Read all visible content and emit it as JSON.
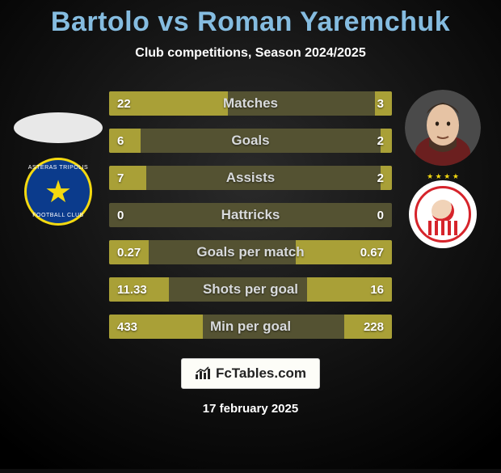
{
  "header": {
    "title": "Bartolo vs Roman Yaremchuk",
    "title_color": "#85bce0",
    "subtitle": "Club competitions, Season 2024/2025",
    "subtitle_color": "#ffffff"
  },
  "background": {
    "color": "#0e0e0e",
    "spotlight_top": "#2a2a2a",
    "spotlight_bottom": "#000000"
  },
  "players": {
    "left": {
      "name": "Bartolo",
      "avatar_shape": "ellipse",
      "avatar_fill": "#e8e8e8",
      "club": "Asteras Tripolis",
      "club_primary": "#0b3b8c",
      "club_accent": "#f4d910",
      "club_text1": "ASTERAS TRIPOLIS",
      "club_text2": "FOOTBALL CLUB"
    },
    "right": {
      "name": "Roman Yaremchuk",
      "avatar_shape": "circle",
      "avatar_fill": "#4a4a4a",
      "club": "Olympiacos",
      "club_primary": "#ffffff",
      "club_accent": "#d6242b",
      "club_stars": 4
    }
  },
  "bars": {
    "bg_color": "#545232",
    "fill_color": "#a9a037",
    "text_color": "#ffffff",
    "label_color": "#d8dadc",
    "rows": [
      {
        "label": "Matches",
        "left": "22",
        "right": "3",
        "left_pct": 42,
        "right_pct": 6
      },
      {
        "label": "Goals",
        "left": "6",
        "right": "2",
        "left_pct": 11,
        "right_pct": 4
      },
      {
        "label": "Assists",
        "left": "7",
        "right": "2",
        "left_pct": 13,
        "right_pct": 4
      },
      {
        "label": "Hattricks",
        "left": "0",
        "right": "0",
        "left_pct": 0,
        "right_pct": 0
      },
      {
        "label": "Goals per match",
        "left": "0.27",
        "right": "0.67",
        "left_pct": 14,
        "right_pct": 34
      },
      {
        "label": "Shots per goal",
        "left": "11.33",
        "right": "16",
        "left_pct": 21,
        "right_pct": 30
      },
      {
        "label": "Min per goal",
        "left": "433",
        "right": "228",
        "left_pct": 33,
        "right_pct": 17
      }
    ]
  },
  "footer": {
    "brand": "FcTables.com",
    "date": "17 february 2025",
    "badge_bg": "#fdfdf8",
    "badge_text": "#222222"
  }
}
